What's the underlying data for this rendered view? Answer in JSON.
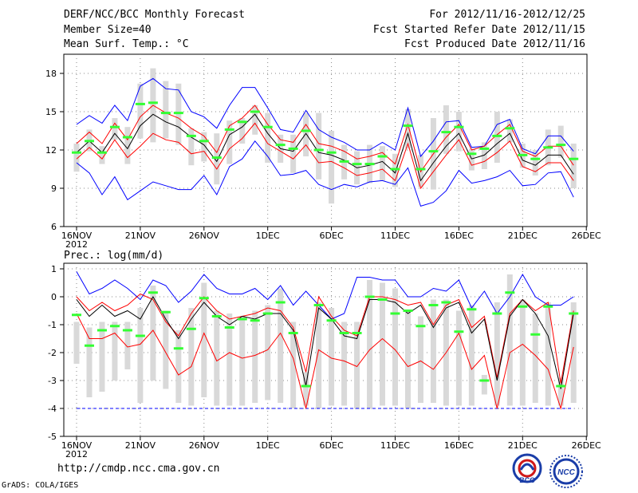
{
  "header": {
    "title": "DERF/NCC/BCC Monthly Forecast",
    "member_size": "Member Size=40",
    "variable": "Mean Surf. Temp.: °C",
    "period": "For 2012/11/16-2012/12/25",
    "started": "Fcst Started Refer Date 2012/11/15",
    "produced": "Fcst Produced Date 2012/11/16"
  },
  "footer": {
    "url": "http://cmdp.ncc.cma.gov.cn",
    "grads": "GrADS: COLA/IGES"
  },
  "logos": {
    "bcc": "BCC",
    "ncc": "NCC"
  },
  "colors": {
    "envelope": "#0000ff",
    "spread": "#ff0000",
    "mean": "#000000",
    "marker": "#33ff33",
    "box": "#d9d9d9",
    "baseline": "#0000ff"
  },
  "chart_data": [
    {
      "type": "line",
      "title": "Mean Surf. Temp.: °C",
      "ylim": [
        6,
        19.5
      ],
      "yticks": [
        6,
        9,
        12,
        15,
        18
      ],
      "xticks": [
        {
          "day": 0,
          "label": "16NOV",
          "sub": "2012"
        },
        {
          "day": 5,
          "label": "21NOV"
        },
        {
          "day": 10,
          "label": "26NOV"
        },
        {
          "day": 15,
          "label": "1DEC"
        },
        {
          "day": 20,
          "label": "6DEC"
        },
        {
          "day": 25,
          "label": "11DEC"
        },
        {
          "day": 30,
          "label": "16DEC"
        },
        {
          "day": 35,
          "label": "21DEC"
        },
        {
          "day": 40,
          "label": "26DEC"
        }
      ],
      "series": [
        {
          "name": "max",
          "color": "#0000ff",
          "values": [
            14.0,
            14.7,
            14.1,
            15.5,
            14.3,
            17.0,
            17.6,
            16.8,
            16.7,
            15.0,
            14.6,
            13.7,
            15.5,
            16.9,
            16.9,
            15.3,
            13.6,
            13.4,
            15.1,
            13.6,
            13.0,
            12.6,
            12.0,
            12.0,
            12.6,
            12.0,
            15.3,
            11.5,
            12.7,
            14.2,
            14.3,
            12.2,
            12.3,
            14.0,
            14.4,
            12.1,
            11.7,
            13.1,
            13.1,
            11.9
          ]
        },
        {
          "name": "upper",
          "color": "#ff0000",
          "values": [
            12.5,
            13.4,
            12.5,
            14.1,
            12.8,
            14.6,
            15.5,
            14.9,
            14.5,
            13.7,
            13.1,
            11.8,
            13.9,
            14.5,
            15.5,
            14.0,
            12.8,
            12.6,
            14.0,
            12.5,
            12.3,
            11.9,
            11.3,
            11.5,
            11.8,
            10.9,
            14.0,
            10.3,
            11.7,
            13.0,
            14.0,
            12.0,
            12.3,
            13.2,
            14.0,
            11.9,
            11.5,
            12.3,
            12.3,
            10.8
          ]
        },
        {
          "name": "mean",
          "color": "#000000",
          "values": [
            11.8,
            12.7,
            11.8,
            13.3,
            12.1,
            13.9,
            14.8,
            14.2,
            13.8,
            13.0,
            12.4,
            11.1,
            13.2,
            13.8,
            14.8,
            13.3,
            12.1,
            11.9,
            13.3,
            11.8,
            11.6,
            11.2,
            10.6,
            10.8,
            11.1,
            10.2,
            13.3,
            9.6,
            11.0,
            12.3,
            13.3,
            11.3,
            11.6,
            12.5,
            13.3,
            11.2,
            10.8,
            11.6,
            11.6,
            10.1
          ]
        },
        {
          "name": "lower",
          "color": "#ff0000",
          "values": [
            11.3,
            12.2,
            11.3,
            12.8,
            11.4,
            12.3,
            13.3,
            12.8,
            12.6,
            11.7,
            11.9,
            10.5,
            12.1,
            12.9,
            14.1,
            12.5,
            11.9,
            11.3,
            12.4,
            11.0,
            11.1,
            10.6,
            10.0,
            10.2,
            10.5,
            9.6,
            12.5,
            9.0,
            10.3,
            11.6,
            12.8,
            10.8,
            11.1,
            11.8,
            12.7,
            10.7,
            10.3,
            11.0,
            11.0,
            9.6
          ]
        },
        {
          "name": "min",
          "color": "#0000ff",
          "values": [
            11.0,
            10.2,
            8.5,
            9.9,
            8.1,
            8.8,
            9.5,
            9.2,
            8.9,
            8.9,
            10.0,
            8.5,
            10.7,
            11.3,
            12.7,
            11.5,
            10.0,
            10.1,
            10.4,
            9.3,
            8.9,
            9.3,
            9.1,
            9.5,
            9.6,
            9.3,
            10.6,
            7.6,
            7.9,
            8.8,
            10.4,
            9.4,
            9.6,
            9.9,
            10.4,
            9.2,
            9.3,
            10.2,
            10.3,
            8.3
          ]
        },
        {
          "name": "observed-marker",
          "color": "#33ff33",
          "values": [
            11.8,
            12.7,
            11.8,
            13.8,
            13.0,
            15.6,
            15.7,
            14.9,
            14.9,
            13.1,
            12.7,
            11.4,
            13.6,
            14.2,
            15.0,
            13.8,
            12.4,
            12.1,
            13.5,
            12.0,
            11.8,
            11.1,
            10.9,
            10.9,
            11.5,
            10.5,
            13.9,
            10.5,
            11.9,
            13.4,
            13.8,
            11.7,
            12.1,
            13.1,
            13.7,
            11.6,
            11.3,
            12.2,
            12.4,
            11.3
          ]
        }
      ],
      "boxes_low": [
        10.3,
        11.9,
        10.9,
        12.8,
        10.9,
        12.9,
        12.6,
        12.9,
        12.4,
        10.8,
        11.1,
        9.3,
        10.9,
        12.5,
        13.2,
        11.0,
        11.0,
        10.2,
        11.5,
        9.7,
        7.8,
        9.7,
        9.3,
        9.4,
        9.6,
        9.1,
        12.1,
        9.1,
        8.9,
        11.7,
        11.9,
        10.4,
        10.5,
        11.0,
        12.6,
        10.6,
        10.0,
        10.8,
        11.4,
        9.0
      ],
      "boxes_high": [
        12.5,
        13.6,
        12.3,
        14.5,
        13.8,
        17.2,
        18.4,
        17.4,
        17.2,
        13.7,
        13.4,
        13.3,
        14.3,
        14.5,
        15.5,
        14.9,
        13.2,
        13.2,
        14.9,
        14.9,
        13.5,
        12.4,
        11.9,
        12.4,
        12.3,
        11.7,
        15.2,
        11.6,
        14.5,
        15.5,
        15.0,
        12.1,
        12.6,
        15.0,
        14.4,
        12.5,
        12.0,
        13.6,
        13.9,
        12.5
      ]
    },
    {
      "type": "line",
      "title": "Prec.: log(mm/d)",
      "ylim": [
        -5,
        1.2
      ],
      "yticks": [
        -5,
        -4,
        -3,
        -2,
        -1,
        0,
        1
      ],
      "xticks": [
        {
          "day": 0,
          "label": "16NOV",
          "sub": "2012"
        },
        {
          "day": 5,
          "label": "21NOV"
        },
        {
          "day": 10,
          "label": "26NOV"
        },
        {
          "day": 15,
          "label": "1DEC"
        },
        {
          "day": 20,
          "label": "6DEC"
        },
        {
          "day": 25,
          "label": "11DEC"
        },
        {
          "day": 30,
          "label": "16DEC"
        },
        {
          "day": 35,
          "label": "21DEC"
        },
        {
          "day": 40,
          "label": "26DEC"
        }
      ],
      "baseline": -4,
      "series": [
        {
          "name": "max",
          "color": "#0000ff",
          "values": [
            0.9,
            0.1,
            0.3,
            0.6,
            0.3,
            -0.1,
            0.6,
            0.4,
            -0.2,
            0.2,
            0.8,
            0.3,
            0.1,
            0.1,
            0.3,
            -0.1,
            0.4,
            -0.3,
            0.2,
            -0.3,
            -0.8,
            -0.6,
            0.7,
            0.7,
            0.6,
            0.6,
            0.0,
            0.0,
            0.3,
            0.2,
            0.6,
            -0.4,
            0.2,
            -0.6,
            0.0,
            0.8,
            0.0,
            -0.3,
            -0.3,
            0.0
          ]
        },
        {
          "name": "upper",
          "color": "#ff0000",
          "values": [
            0.0,
            -0.5,
            -0.2,
            -0.5,
            -0.3,
            0.1,
            -0.1,
            -0.9,
            -1.4,
            -0.6,
            0.0,
            -0.5,
            -0.8,
            -0.7,
            -0.6,
            -0.4,
            -0.5,
            -1.1,
            -2.7,
            0.0,
            -0.7,
            -1.2,
            -1.4,
            0.0,
            0.0,
            -0.1,
            -0.3,
            -0.2,
            -1.0,
            -0.3,
            -0.1,
            -1.1,
            -0.7,
            -2.9,
            -0.6,
            -0.1,
            -0.5,
            -0.2,
            -3.1,
            -0.5
          ]
        },
        {
          "name": "mean",
          "color": "#000000",
          "values": [
            -0.1,
            -0.7,
            -0.3,
            -0.7,
            -0.5,
            -0.8,
            0.0,
            -0.8,
            -1.5,
            -0.8,
            -0.2,
            -0.7,
            -1.0,
            -0.7,
            -0.8,
            -0.6,
            -0.6,
            -1.2,
            -3.2,
            -0.4,
            -0.8,
            -1.4,
            -1.5,
            -0.1,
            -0.1,
            -0.2,
            -0.6,
            -0.3,
            -1.1,
            -0.4,
            -0.2,
            -1.3,
            -0.8,
            -3.0,
            -0.7,
            -0.1,
            -0.6,
            -1.4,
            -3.3,
            -0.6
          ]
        },
        {
          "name": "lower",
          "color": "#ff0000",
          "values": [
            -0.6,
            -1.5,
            -1.5,
            -1.3,
            -1.8,
            -1.7,
            -1.2,
            -2.0,
            -2.8,
            -2.5,
            -1.3,
            -2.3,
            -2.0,
            -2.2,
            -2.1,
            -1.9,
            -1.3,
            -2.2,
            -4.0,
            -1.9,
            -2.2,
            -2.3,
            -2.5,
            -1.9,
            -1.5,
            -1.9,
            -2.5,
            -2.3,
            -2.6,
            -2.0,
            -1.3,
            -2.6,
            -2.1,
            -4.0,
            -2.0,
            -1.7,
            -2.1,
            -2.6,
            -4.0,
            -1.8
          ]
        },
        {
          "name": "observed-marker",
          "color": "#33ff33",
          "values": [
            -0.65,
            -1.75,
            -1.2,
            -1.05,
            -1.2,
            -1.4,
            0.15,
            -0.55,
            -1.85,
            -1.15,
            -0.05,
            -0.7,
            -1.1,
            -0.8,
            -0.85,
            -0.6,
            -0.2,
            -1.3,
            -3.2,
            -0.3,
            -0.85,
            -1.3,
            -1.3,
            0.0,
            -0.1,
            -0.6,
            -0.5,
            -1.05,
            -0.3,
            -0.2,
            -1.25,
            -0.45,
            -3.0,
            -0.6,
            0.15,
            -0.35,
            -1.35,
            -0.35,
            -3.2,
            -0.6
          ]
        }
      ],
      "boxes_low": [
        -2.4,
        -3.6,
        -3.4,
        -3.0,
        -2.6,
        -3.8,
        -3.0,
        -3.3,
        -3.8,
        -3.9,
        -3.6,
        -3.9,
        -3.9,
        -3.9,
        -3.8,
        -3.7,
        -3.8,
        -4.0,
        -3.9,
        -4.0,
        -3.9,
        -3.9,
        -4.0,
        -4.0,
        -3.9,
        -3.9,
        -4.0,
        -3.8,
        -3.8,
        -3.9,
        -3.9,
        -3.9,
        -3.5,
        -3.9,
        -3.9,
        -3.9,
        -3.8,
        -3.9,
        -3.9,
        -3.8
      ],
      "boxes_high": [
        -0.9,
        -1.1,
        -0.9,
        -0.9,
        -0.9,
        -0.4,
        0.4,
        -0.5,
        -1.2,
        -0.4,
        0.5,
        -0.5,
        -0.6,
        -0.7,
        -0.5,
        -0.3,
        0.3,
        -0.9,
        -2.7,
        -0.2,
        -0.4,
        -0.9,
        -0.9,
        0.6,
        0.5,
        0.3,
        -0.5,
        -0.7,
        -0.1,
        -0.1,
        -0.5,
        -0.3,
        -2.8,
        -0.2,
        0.8,
        -0.1,
        -0.6,
        -0.2,
        -2.9,
        -0.2
      ]
    }
  ]
}
